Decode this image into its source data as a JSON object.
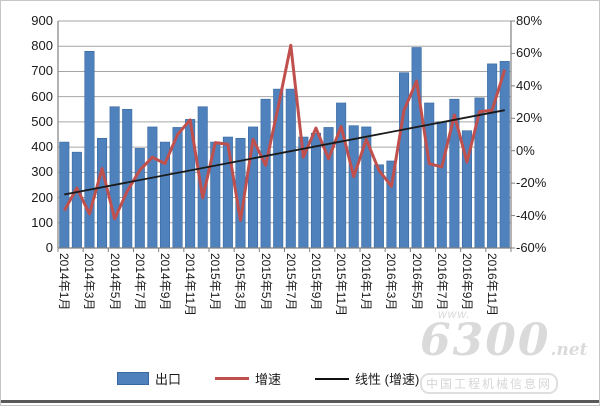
{
  "legend": {
    "export_label": "出口",
    "growth_label": "增速",
    "trend_label": "线性 (增速)"
  },
  "watermark": {
    "www": "www.",
    "number": "6300",
    "tld": ".net",
    "caption": "中国工程机械信息网"
  },
  "chart_data": {
    "type": "bar",
    "title": "",
    "categories": [
      "2014年1月",
      "2014年2月",
      "2014年3月",
      "2014年4月",
      "2014年5月",
      "2014年6月",
      "2014年7月",
      "2014年8月",
      "2014年9月",
      "2014年10月",
      "2014年11月",
      "2014年12月",
      "2015年1月",
      "2015年2月",
      "2015年3月",
      "2015年4月",
      "2015年5月",
      "2015年6月",
      "2015年7月",
      "2015年8月",
      "2015年9月",
      "2015年10月",
      "2015年11月",
      "2015年12月",
      "2016年1月",
      "2016年2月",
      "2016年3月",
      "2016年4月",
      "2016年5月",
      "2016年6月",
      "2016年7月",
      "2016年8月",
      "2016年9月",
      "2016年10月",
      "2016年11月",
      "2016年12月"
    ],
    "x_tick_labels": [
      "2014年1月",
      "2014年3月",
      "2014年5月",
      "2014年7月",
      "2014年9月",
      "2014年11月",
      "2015年1月",
      "2015年3月",
      "2015年5月",
      "2015年7月",
      "2015年9月",
      "2015年11月",
      "2016年1月",
      "2016年3月",
      "2016年5月",
      "2016年7月",
      "2016年9月",
      "2016年11月"
    ],
    "series": [
      {
        "name": "出口",
        "type": "bar",
        "axis": "left",
        "color": "#4F81BD",
        "border_color": "#38689F",
        "values": [
          420,
          380,
          780,
          435,
          560,
          550,
          395,
          480,
          420,
          478,
          510,
          560,
          420,
          440,
          435,
          480,
          590,
          630,
          630,
          440,
          455,
          478,
          575,
          485,
          480,
          330,
          345,
          695,
          795,
          575,
          500,
          590,
          465,
          595,
          730,
          740
        ]
      },
      {
        "name": "增速",
        "type": "line",
        "axis": "right",
        "color": "#C0504D",
        "values_pct": [
          -37,
          -23,
          -39,
          -11,
          -42,
          -25,
          -12,
          -4,
          -8,
          10,
          19,
          -29,
          5,
          4,
          -43,
          7,
          -9,
          27,
          65,
          -4,
          14,
          -5,
          15,
          -16,
          7,
          -12,
          -22,
          25,
          43,
          -8,
          -10,
          22,
          -7,
          24,
          25,
          50
        ]
      },
      {
        "name": "线性 (增速)",
        "type": "trendline",
        "axis": "right",
        "color": "#1a1a1a",
        "endpoints_pct": [
          -27,
          25
        ]
      }
    ],
    "left_axis": {
      "min": 0,
      "max": 900,
      "step": 100,
      "ticks": [
        "900",
        "800",
        "700",
        "600",
        "500",
        "400",
        "300",
        "200",
        "100",
        "0"
      ]
    },
    "right_axis": {
      "min": -60,
      "max": 80,
      "step": 20,
      "ticks": [
        "80%",
        "60%",
        "40%",
        "20%",
        "0%",
        "-20%",
        "-40%",
        "-60%"
      ]
    },
    "grid": true,
    "legend_position": "bottom",
    "grid_color": "#a6a6a6",
    "axis_color": "#808080"
  }
}
